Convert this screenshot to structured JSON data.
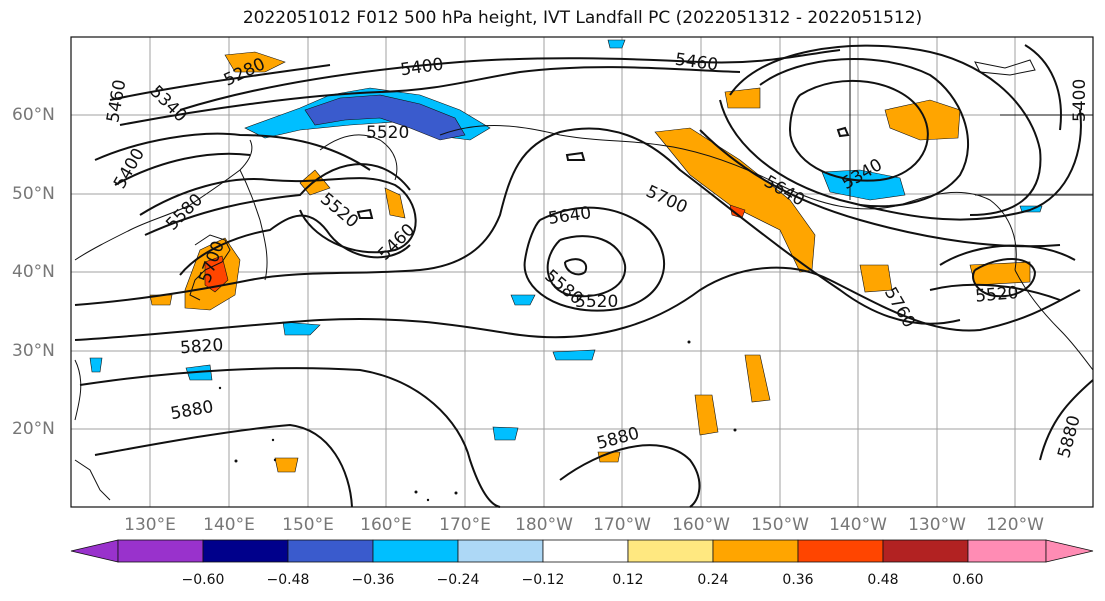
{
  "title": "2022051012 F012 500 hPa height, IVT Landfall PC (2022051312 - 2022051512)",
  "lat_labels": [
    "60°N",
    "50°N",
    "40°N",
    "30°N",
    "20°N"
  ],
  "lon_labels": [
    "130°E",
    "140°E",
    "150°E",
    "160°E",
    "170°E",
    "180°W",
    "170°W",
    "160°W",
    "150°W",
    "140°W",
    "130°W",
    "120°W"
  ],
  "contour_labels": [
    "5280",
    "5400",
    "5460",
    "5340",
    "5460",
    "5520",
    "5400",
    "5580",
    "5460",
    "5520",
    "5700",
    "5640",
    "5700",
    "5580",
    "5520",
    "5640",
    "5340",
    "5400",
    "5820",
    "5880",
    "5880",
    "5760",
    "5520",
    "5880"
  ],
  "colorbar": {
    "ticks": [
      "−0.60",
      "−0.48",
      "−0.36",
      "−0.24",
      "−0.12",
      "0.12",
      "0.24",
      "0.36",
      "0.48",
      "0.60"
    ],
    "colors": [
      "#9932cc",
      "#00008b",
      "#3a5bcd",
      "#00bfff",
      "#add8f6",
      "#ffffff",
      "#ffffff",
      "#ffe880",
      "#ffa500",
      "#ff4500",
      "#b22222",
      "#ff8cb4"
    ]
  },
  "colors": {
    "contour": "#111111",
    "grid": "#a0a0a0",
    "axis_label": "#777777"
  }
}
